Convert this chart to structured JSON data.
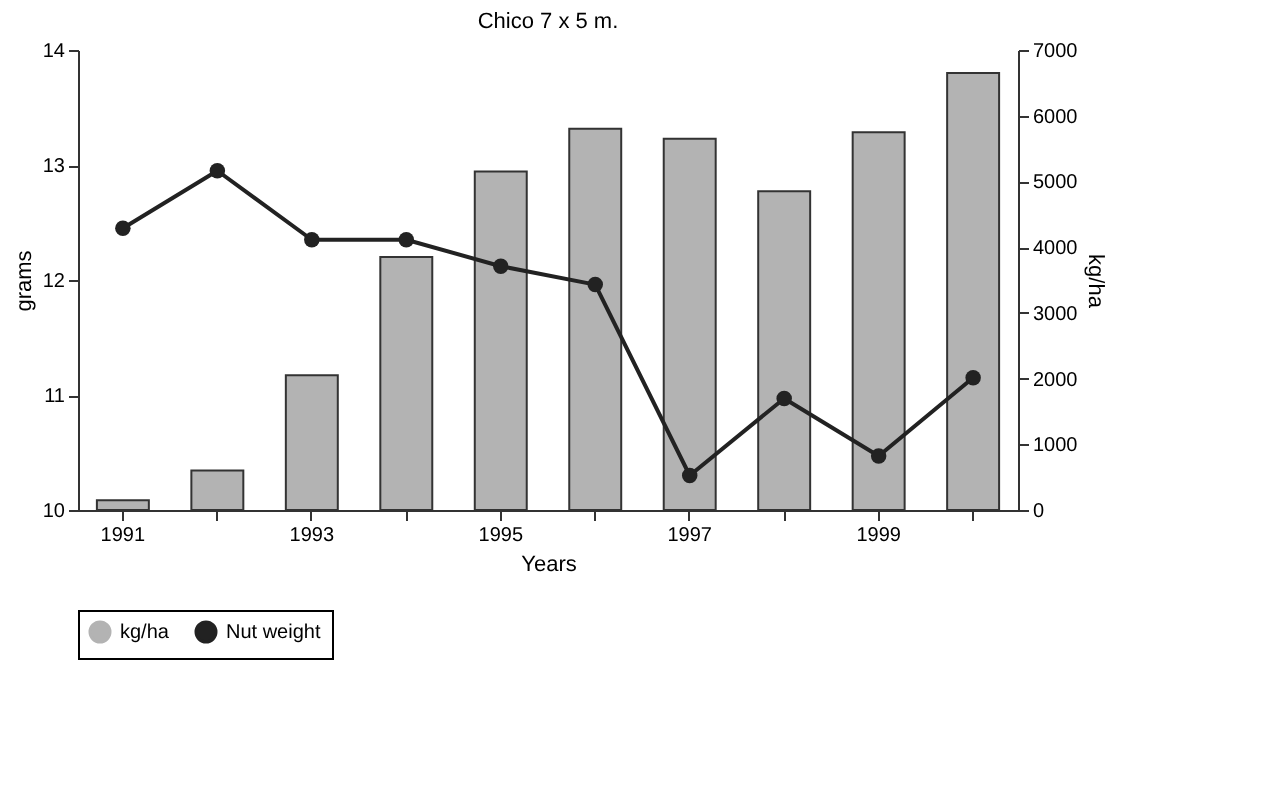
{
  "chart_data": {
    "type": "bar",
    "title": "Chico 7 x 5 m.",
    "xlabel": "Years",
    "ylabel": "grams",
    "y2label": "kg/ha",
    "categories": [
      "1991",
      null,
      "1993",
      null,
      "1995",
      null,
      "1997",
      null,
      "1999",
      null
    ],
    "series": [
      {
        "name": "kg/ha",
        "axis": "y2",
        "color": "#b3b3b3",
        "values": [
          150,
          600,
          2050,
          3850,
          5150,
          5800,
          5650,
          4850,
          5750,
          6650
        ]
      },
      {
        "name": "Nut weight",
        "type": "line",
        "color": "#222222",
        "marker": "circle",
        "values": [
          12.45,
          12.95,
          12.35,
          12.35,
          12.12,
          11.96,
          10.3,
          10.97,
          10.47,
          11.15
        ]
      }
    ],
    "ylim": [
      10,
      14
    ],
    "yticks": [
      10,
      11,
      12,
      13,
      14
    ],
    "y2lim": [
      0,
      7000
    ],
    "y2ticks": [
      0,
      1000,
      2000,
      3000,
      4000,
      5000,
      6000,
      7000
    ],
    "grid": false,
    "legend": "bottom"
  }
}
